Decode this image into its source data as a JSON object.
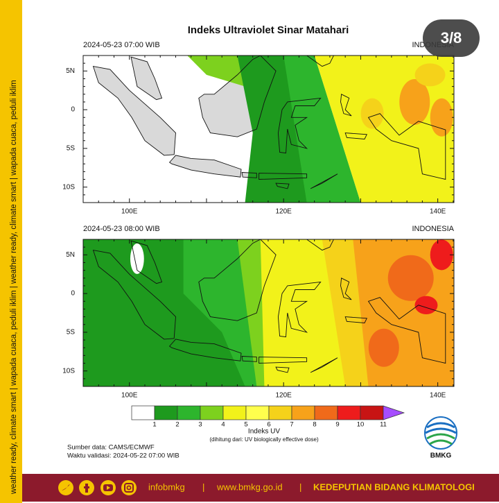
{
  "badge": "3/8",
  "title": "Indeks Ultraviolet Sinar Matahari",
  "panels": [
    {
      "time": "2024-05-23  07:00 WIB",
      "region": "INDONESIA"
    },
    {
      "time": "2024-05-23  08:00 WIB",
      "region": "INDONESIA"
    }
  ],
  "lat_labels": [
    "5N",
    "0",
    "5S",
    "10S"
  ],
  "lon_labels": [
    "100E",
    "120E",
    "140E"
  ],
  "colorbar": {
    "labels": [
      "1",
      "2",
      "3",
      "4",
      "5",
      "6",
      "7",
      "8",
      "9",
      "10",
      "11"
    ],
    "colors": [
      "#ffffff",
      "#1e9a1e",
      "#2db52d",
      "#7dd11e",
      "#f2f21a",
      "#ffff4d",
      "#f5d21a",
      "#f7a21a",
      "#f06a1a",
      "#ee1c1c",
      "#c81414",
      "#a64dff"
    ],
    "title": "Indeks UV",
    "note": "(dihitung dari: UV biologically effective dose)"
  },
  "source": "Sumber data: CAMS/ECMWF",
  "validity": "Waktu validasi: 2024-05-22 07:00 WIB",
  "logo": "BMKG",
  "side_text": "weather ready, climate smart  |  wapada cuaca, peduli iklim  |  weather ready, climate smart  |  wapada cuaca, peduli iklim",
  "footer": {
    "handle": "infobmkg",
    "separators": [
      "|",
      "|"
    ],
    "url": "www.bmkg.go.id",
    "dept": "KEDEPUTIAN BIDANG KLIMATOLOGI"
  }
}
